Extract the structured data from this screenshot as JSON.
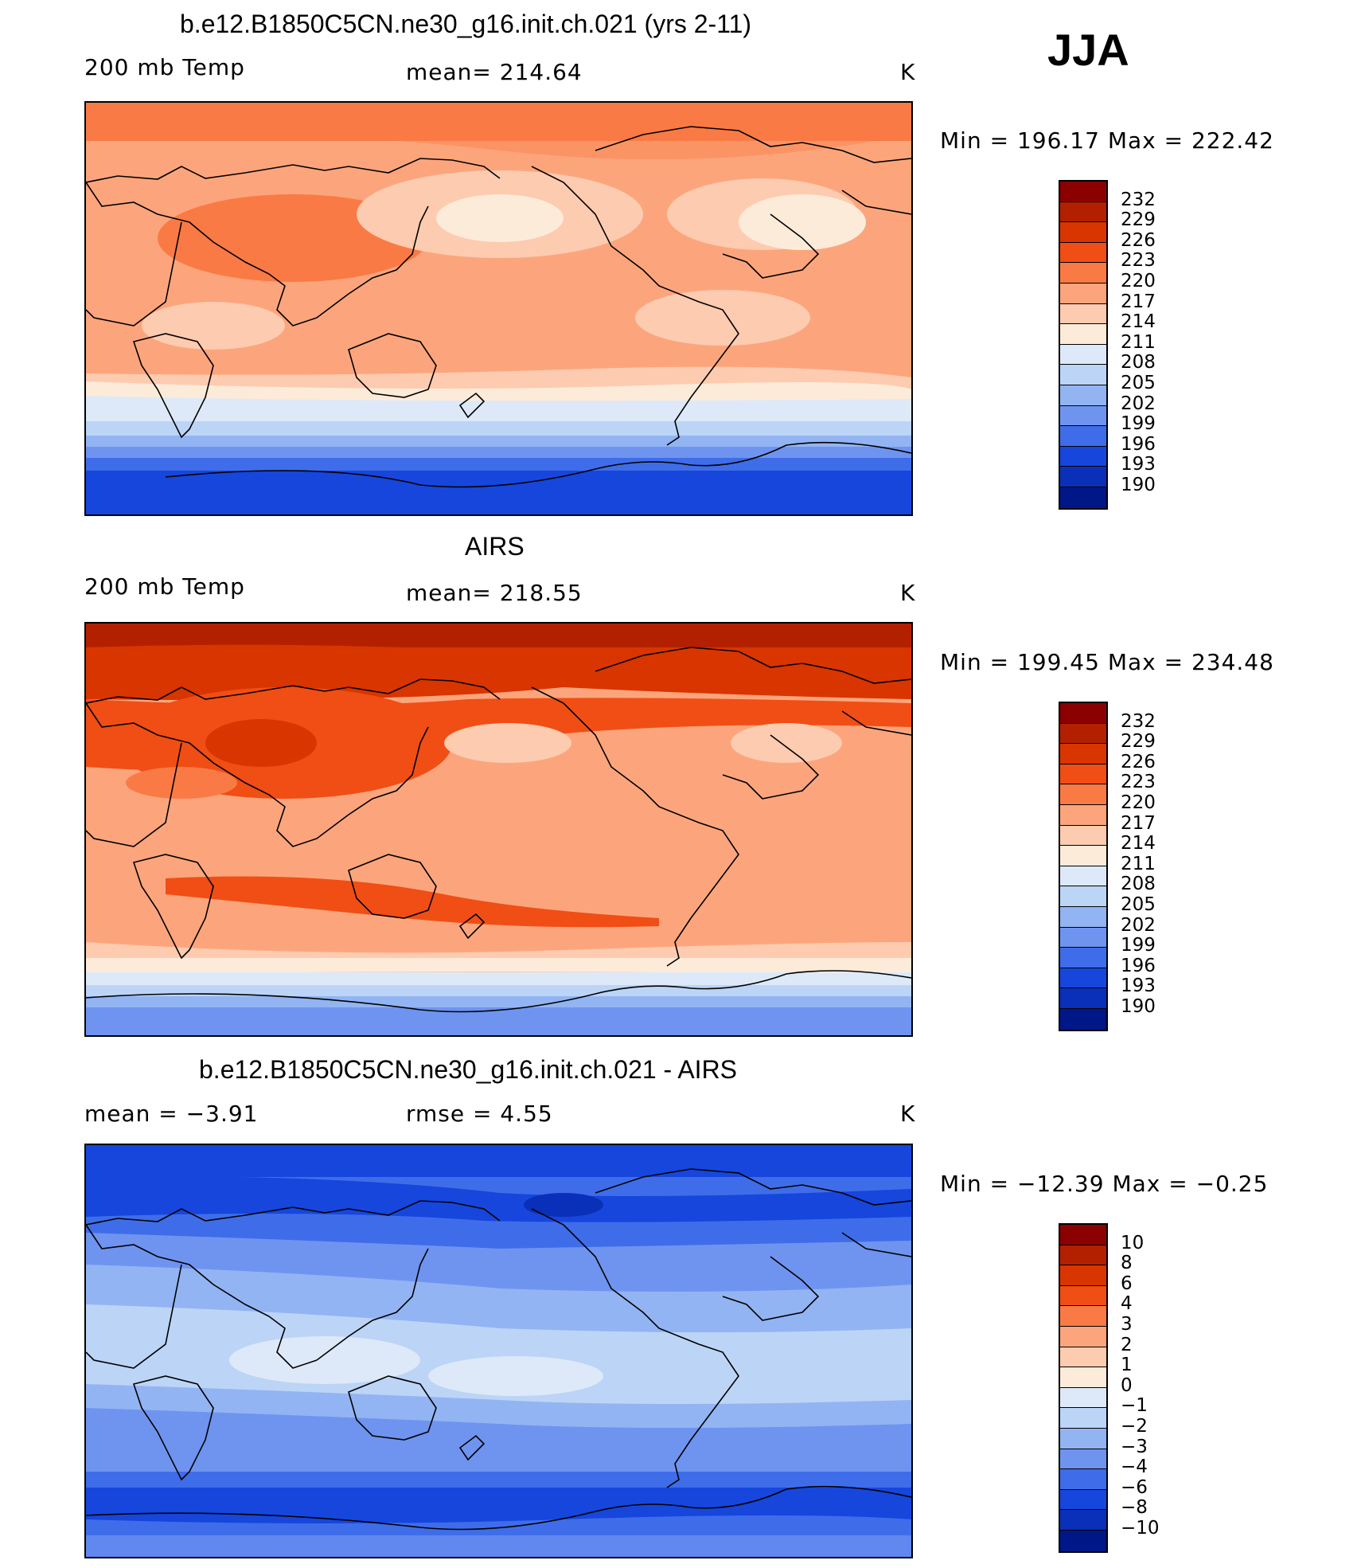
{
  "season": "JJA",
  "units": "K",
  "panels": [
    {
      "title": "b.e12.B1850C5CN.ne30_g16.init.ch.021 (yrs 2-11)",
      "left_label": "200 mb Temp",
      "center_label": "mean=  214.64",
      "right_label": "K",
      "minmax": "Min  =  196.17  Max  =  222.42",
      "colorbar": {
        "labels": [
          "232",
          "229",
          "226",
          "223",
          "220",
          "217",
          "214",
          "211",
          "208",
          "205",
          "202",
          "199",
          "196",
          "193",
          "190"
        ],
        "colors": [
          "#8b0000",
          "#b22000",
          "#d83500",
          "#f04e15",
          "#fa7a45",
          "#fca57c",
          "#fdcbb0",
          "#fdebd9",
          "#dde9f8",
          "#bcd4f6",
          "#93b4f3",
          "#6f94f0",
          "#3f6de9",
          "#1646dc",
          "#0a2fb8",
          "#001788"
        ]
      }
    },
    {
      "title": "AIRS",
      "left_label": "200 mb Temp",
      "center_label": "mean=  218.55",
      "right_label": "K",
      "minmax": "Min  =  199.45  Max  =  234.48",
      "colorbar": {
        "labels": [
          "232",
          "229",
          "226",
          "223",
          "220",
          "217",
          "214",
          "211",
          "208",
          "205",
          "202",
          "199",
          "196",
          "193",
          "190"
        ],
        "colors": [
          "#8b0000",
          "#b22000",
          "#d83500",
          "#f04e15",
          "#fa7a45",
          "#fca57c",
          "#fdcbb0",
          "#fdebd9",
          "#dde9f8",
          "#bcd4f6",
          "#93b4f3",
          "#6f94f0",
          "#3f6de9",
          "#1646dc",
          "#0a2fb8",
          "#001788"
        ]
      }
    },
    {
      "title": "b.e12.B1850C5CN.ne30_g16.init.ch.021 - AIRS",
      "left_label": "mean  =    −3.91",
      "center_label": "rmse  =     4.55",
      "right_label": "K",
      "minmax": "Min  =  −12.39  Max  =   −0.25",
      "colorbar": {
        "labels": [
          "10",
          "8",
          "6",
          "4",
          "3",
          "2",
          "1",
          "0",
          "−1",
          "−2",
          "−3",
          "−4",
          "−6",
          "−8",
          "−10"
        ],
        "colors": [
          "#8b0000",
          "#b22000",
          "#d83500",
          "#f04e15",
          "#fa7a45",
          "#fca57c",
          "#fdcbb0",
          "#fdebd9",
          "#dde9f8",
          "#bcd4f6",
          "#93b4f3",
          "#6f94f0",
          "#3f6de9",
          "#1646dc",
          "#0a2fb8",
          "#001788"
        ]
      }
    }
  ]
}
